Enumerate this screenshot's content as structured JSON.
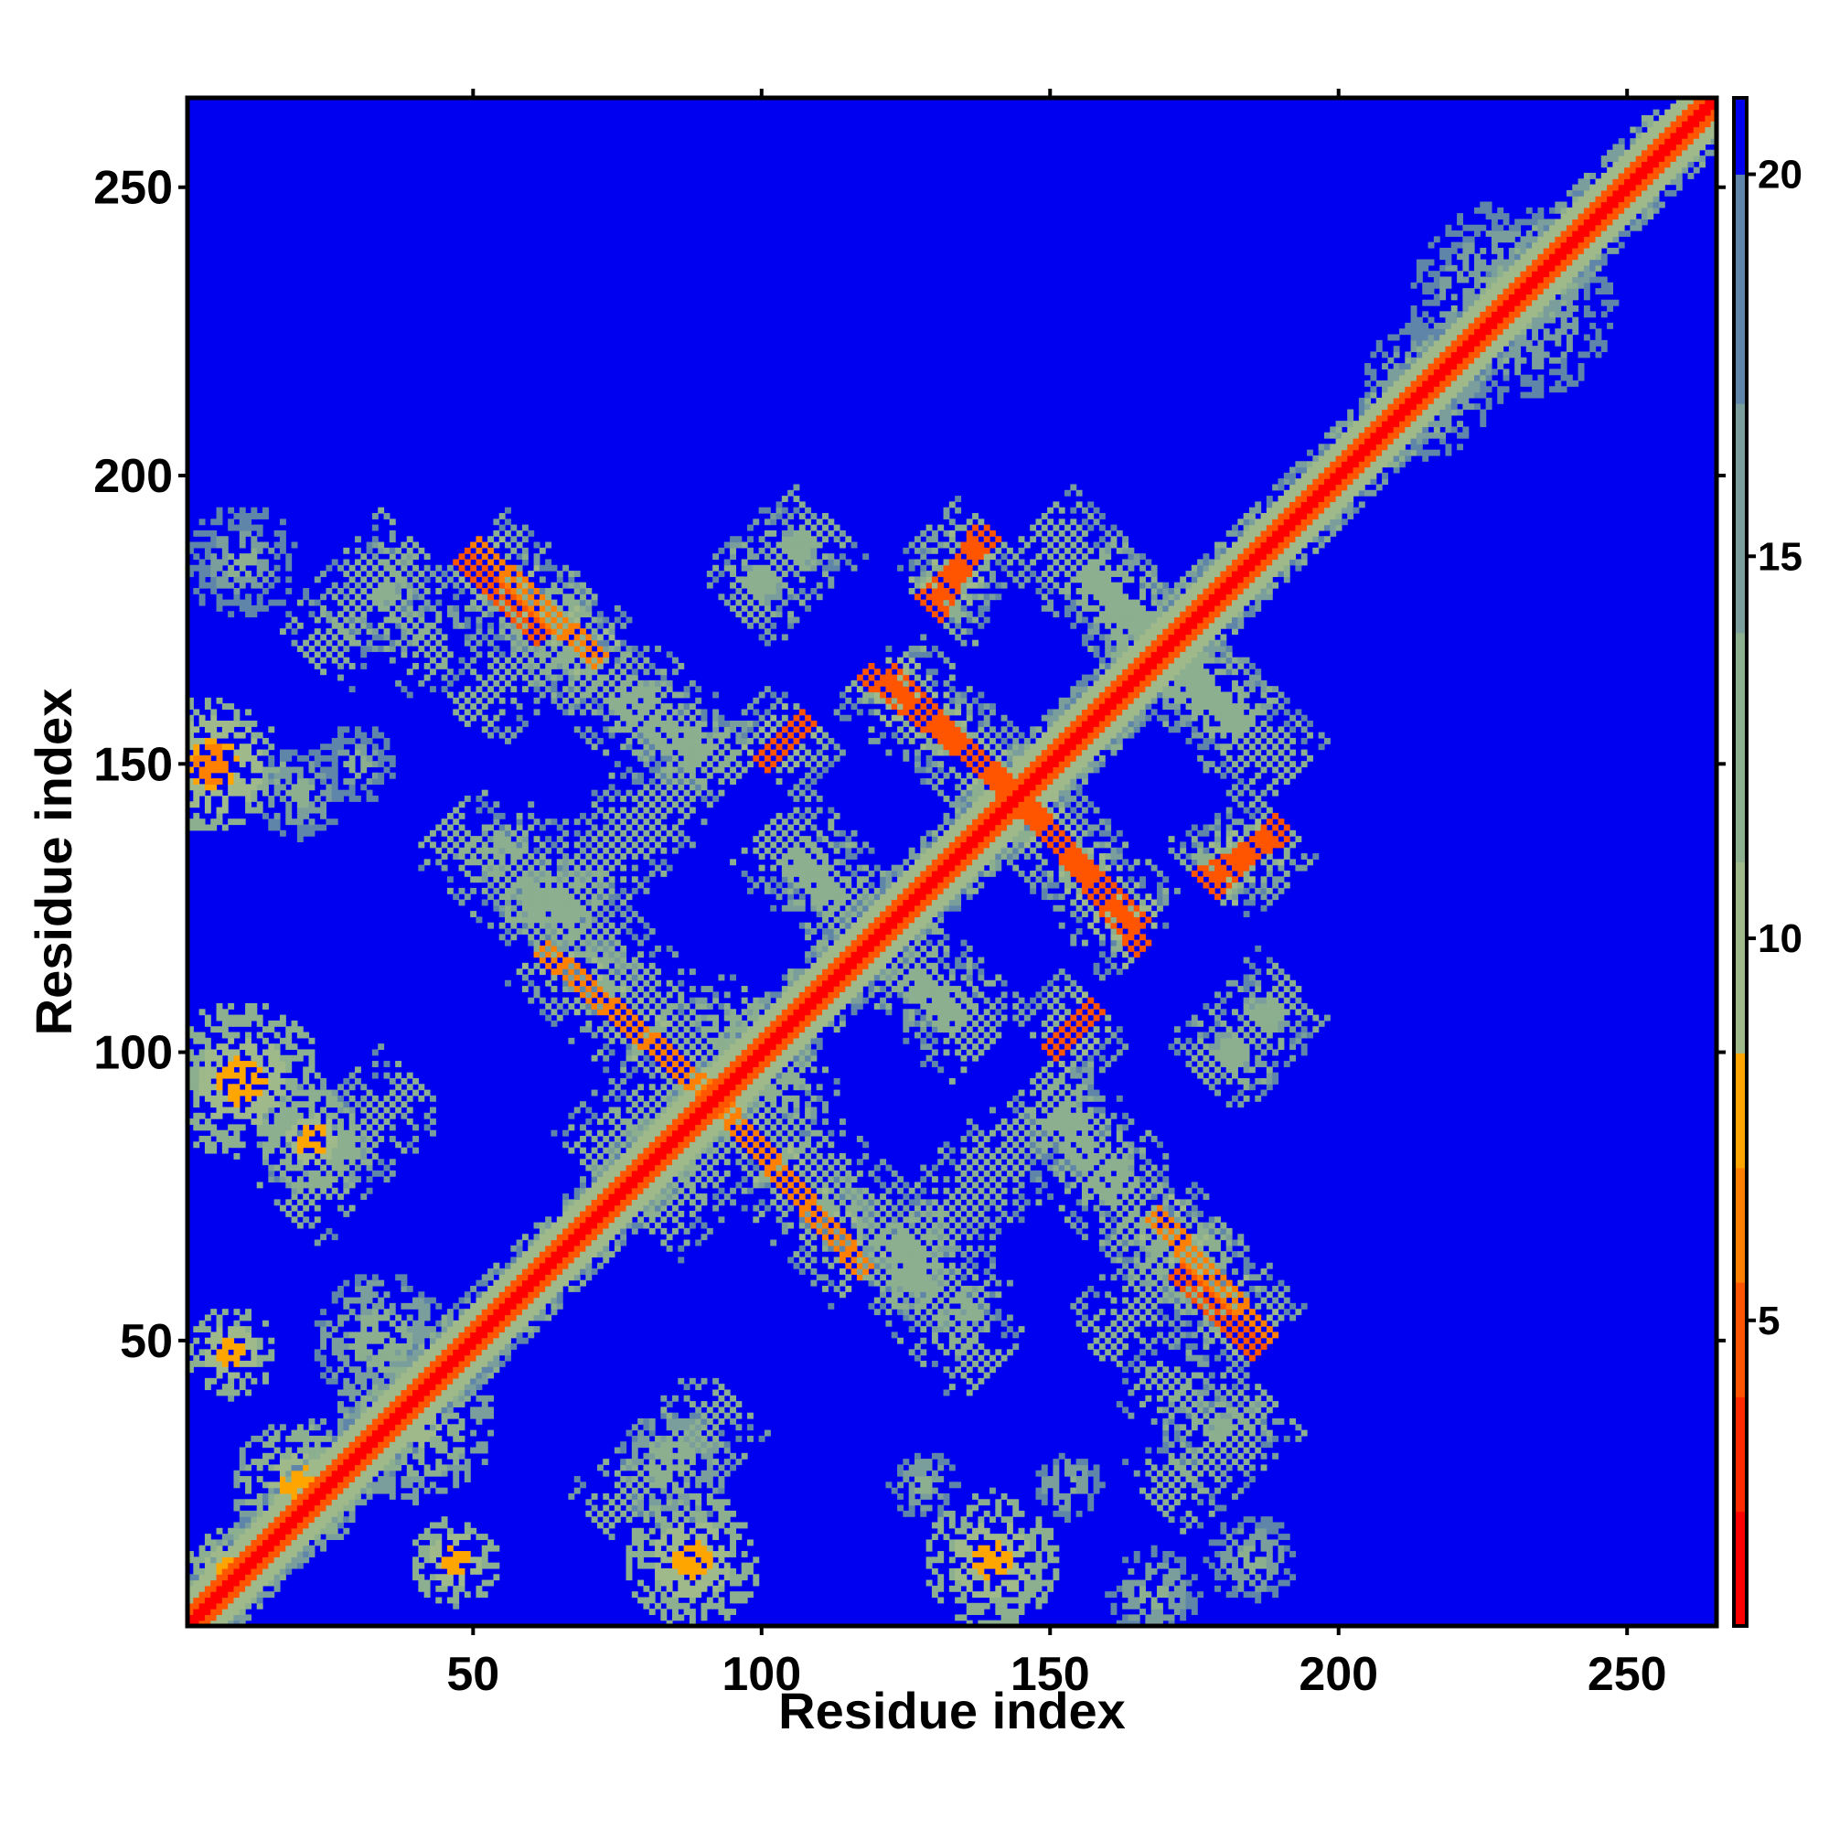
{
  "chart_data": {
    "type": "heatmap",
    "title": "",
    "xlabel": "Residue index",
    "ylabel": "Residue index",
    "xlim": [
      1,
      265
    ],
    "ylim": [
      1,
      265
    ],
    "x_ticks": [
      50,
      100,
      150,
      200,
      250
    ],
    "y_ticks": [
      50,
      100,
      150,
      200,
      250
    ],
    "x_tick_labels": [
      "50",
      "100",
      "150",
      "200",
      "250"
    ],
    "y_tick_labels": [
      "50",
      "100",
      "150",
      "200",
      "250"
    ],
    "colorbar": {
      "range": [
        1,
        21
      ],
      "ticks": [
        5,
        10,
        15,
        20
      ],
      "tick_labels": [
        "5",
        "10",
        "15",
        "20"
      ],
      "colors": [
        {
          "from": 1,
          "to": 2.5,
          "color": "#ff0000"
        },
        {
          "from": 2.5,
          "to": 4,
          "color": "#ff2a00"
        },
        {
          "from": 4,
          "to": 5.5,
          "color": "#ff5500"
        },
        {
          "from": 5.5,
          "to": 7,
          "color": "#ff8000"
        },
        {
          "from": 7,
          "to": 8.5,
          "color": "#ffa500"
        },
        {
          "from": 8.5,
          "to": 11,
          "color": "#9fb98a"
        },
        {
          "from": 11,
          "to": 14,
          "color": "#8caf8f"
        },
        {
          "from": 14,
          "to": 17,
          "color": "#7a9e9c"
        },
        {
          "from": 17,
          "to": 20,
          "color": "#5f86a8"
        },
        {
          "from": 20,
          "to": 21,
          "color": "#0000f0"
        }
      ]
    },
    "background_value": 21,
    "diagonal_band": {
      "core_value": 1,
      "shoulder_value": 5,
      "halo_value": 10
    },
    "contact_features": [
      {
        "kind": "antidiagonal",
        "from": [
          48,
          186
        ],
        "to": [
          62,
          172
        ],
        "core": 5
      },
      {
        "kind": "antidiagonal",
        "from": [
          62,
          172
        ],
        "to": [
          88,
          150
        ],
        "core": 11
      },
      {
        "kind": "antidiagonal",
        "from": [
          30,
          185
        ],
        "to": [
          45,
          168
        ],
        "core": 12
      },
      {
        "kind": "antidiagonal",
        "from": [
          45,
          140
        ],
        "to": [
          62,
          125
        ],
        "core": 12
      },
      {
        "kind": "antidiagonal",
        "from": [
          62,
          118
        ],
        "to": [
          92,
          92
        ],
        "core": 6
      },
      {
        "kind": "antidiagonal",
        "from": [
          95,
          94
        ],
        "to": [
          118,
          72
        ],
        "core": 11
      },
      {
        "kind": "antidiagonal",
        "from": [
          118,
          72
        ],
        "to": [
          138,
          55
        ],
        "core": 12
      },
      {
        "kind": "antidiagonal",
        "from": [
          102,
          140
        ],
        "to": [
          120,
          122
        ],
        "core": 11
      },
      {
        "kind": "antidiagonal",
        "from": [
          122,
          118
        ],
        "to": [
          138,
          100
        ],
        "core": 11
      },
      {
        "kind": "antidiagonal",
        "from": [
          118,
          166
        ],
        "to": [
          142,
          147
        ],
        "core": 5
      },
      {
        "kind": "antidiagonal",
        "from": [
          146,
          142
        ],
        "to": [
          166,
          122
        ],
        "core": 5
      },
      {
        "kind": "antidiagonal",
        "from": [
          150,
          188
        ],
        "to": [
          172,
          168
        ],
        "core": 11
      },
      {
        "kind": "antidiagonal",
        "from": [
          172,
          168
        ],
        "to": [
          192,
          148
        ],
        "core": 11
      },
      {
        "kind": "antidiagonal",
        "from": [
          148,
          96
        ],
        "to": [
          166,
          74
        ],
        "core": 11
      },
      {
        "kind": "antidiagonal",
        "from": [
          168,
          72
        ],
        "to": [
          188,
          50
        ],
        "core": 6
      },
      {
        "kind": "diagonal",
        "from": [
          130,
          176
        ],
        "to": [
          138,
          190
        ],
        "core": 5
      },
      {
        "kind": "diagonal",
        "from": [
          100,
          150
        ],
        "to": [
          108,
          158
        ],
        "core": 5
      },
      {
        "kind": "diagonal",
        "from": [
          178,
          128
        ],
        "to": [
          190,
          140
        ],
        "core": 5
      },
      {
        "kind": "diagonal",
        "from": [
          150,
          100
        ],
        "to": [
          158,
          108
        ],
        "core": 6
      },
      {
        "kind": "diagonal",
        "from": [
          158,
          48
        ],
        "to": [
          180,
          70
        ],
        "core": 11
      },
      {
        "kind": "diagonal",
        "from": [
          168,
          22
        ],
        "to": [
          188,
          40
        ],
        "core": 12
      },
      {
        "kind": "diagonal",
        "from": [
          60,
          120
        ],
        "to": [
          88,
          148
        ],
        "core": 11
      },
      {
        "kind": "diagonal",
        "from": [
          70,
          80
        ],
        "to": [
          100,
          108
        ],
        "core": 11
      },
      {
        "kind": "diagonal",
        "from": [
          122,
          60
        ],
        "to": [
          142,
          80
        ],
        "core": 12
      },
      {
        "kind": "diagonal",
        "from": [
          72,
          18
        ],
        "to": [
          95,
          40
        ],
        "core": 12
      },
      {
        "kind": "diagonal",
        "from": [
          98,
          180
        ],
        "to": [
          112,
          192
        ],
        "core": 13
      },
      {
        "kind": "diagonal",
        "from": [
          176,
          96
        ],
        "to": [
          190,
          108
        ],
        "core": 13
      },
      {
        "kind": "blob",
        "at": [
          5,
          150
        ],
        "r": 12,
        "core": 6
      },
      {
        "kind": "blob",
        "at": [
          20,
          145
        ],
        "r": 8,
        "core": 12
      },
      {
        "kind": "blob",
        "at": [
          10,
          185
        ],
        "r": 10,
        "core": 13
      },
      {
        "kind": "blob",
        "at": [
          30,
          150
        ],
        "r": 7,
        "core": 13
      },
      {
        "kind": "blob",
        "at": [
          10,
          95
        ],
        "r": 14,
        "core": 7
      },
      {
        "kind": "blob",
        "at": [
          22,
          85
        ],
        "r": 10,
        "core": 8
      },
      {
        "kind": "blob",
        "at": [
          8,
          48
        ],
        "r": 8,
        "core": 7
      },
      {
        "kind": "blob",
        "at": [
          34,
          50
        ],
        "r": 12,
        "core": 11
      },
      {
        "kind": "blob",
        "at": [
          40,
          36
        ],
        "r": 14,
        "core": 9
      },
      {
        "kind": "blob",
        "at": [
          20,
          25
        ],
        "r": 12,
        "core": 8
      },
      {
        "kind": "blob",
        "at": [
          8,
          10
        ],
        "r": 8,
        "core": 7
      },
      {
        "kind": "blob",
        "at": [
          47,
          12
        ],
        "r": 8,
        "core": 7
      },
      {
        "kind": "blob",
        "at": [
          88,
          12
        ],
        "r": 12,
        "core": 7
      },
      {
        "kind": "blob",
        "at": [
          85,
          28
        ],
        "r": 10,
        "core": 11
      },
      {
        "kind": "blob",
        "at": [
          140,
          12
        ],
        "r": 12,
        "core": 7
      },
      {
        "kind": "blob",
        "at": [
          168,
          6
        ],
        "r": 8,
        "core": 12
      },
      {
        "kind": "blob",
        "at": [
          128,
          25
        ],
        "r": 6,
        "core": 12
      },
      {
        "kind": "blob",
        "at": [
          153,
          25
        ],
        "r": 6,
        "core": 12
      },
      {
        "kind": "blob",
        "at": [
          185,
          12
        ],
        "r": 8,
        "core": 12
      },
      {
        "kind": "blob",
        "at": [
          230,
          230
        ],
        "r": 18,
        "core": 12
      },
      {
        "kind": "blob",
        "at": [
          215,
          215
        ],
        "r": 12,
        "core": 12
      }
    ]
  }
}
